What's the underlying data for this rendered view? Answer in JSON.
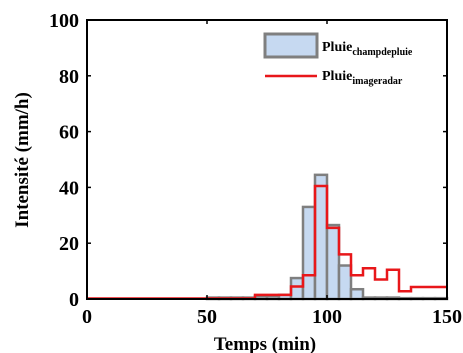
{
  "chart_data": {
    "type": "bar",
    "xlabel": "Temps (min)",
    "ylabel": "Intensité (mm/h)",
    "xlim": [
      0,
      150
    ],
    "ylim": [
      0,
      100
    ],
    "xticks": [
      "0",
      "50",
      "100",
      "150"
    ],
    "yticks": [
      "0",
      "20",
      "40",
      "60",
      "80",
      "100"
    ],
    "legend_position": "top-right",
    "series": [
      {
        "name": "Pluie",
        "name_subscript": "champdepluie",
        "style": "bars",
        "fill": "#c6d9f1",
        "edge": "#7f7f7f",
        "bin_width": 5,
        "x": [
          0,
          5,
          10,
          15,
          20,
          25,
          30,
          35,
          40,
          45,
          50,
          55,
          60,
          65,
          70,
          75,
          80,
          85,
          90,
          95,
          100,
          105,
          110,
          115,
          120,
          125,
          130,
          135,
          140,
          145
        ],
        "values": [
          0,
          0,
          0,
          0,
          0,
          0,
          0,
          0,
          0,
          0,
          0.5,
          0.5,
          0.5,
          0.5,
          1,
          1,
          1.5,
          7.5,
          33,
          44.5,
          26.5,
          12,
          3.5,
          0.5,
          0.5,
          0.5,
          0.3,
          0.3,
          0.3,
          0.3
        ]
      },
      {
        "name": "Pluie",
        "name_subscript": "imageradar",
        "style": "step",
        "color": "#e8171a",
        "bin_width": 5,
        "x": [
          0,
          5,
          10,
          15,
          20,
          25,
          30,
          35,
          40,
          45,
          50,
          55,
          60,
          65,
          70,
          75,
          80,
          85,
          90,
          95,
          100,
          105,
          110,
          115,
          120,
          125,
          130,
          135,
          140,
          145
        ],
        "values": [
          0.2,
          0.2,
          0.2,
          0.2,
          0.2,
          0.2,
          0.2,
          0.2,
          0.2,
          0.2,
          0.2,
          0.2,
          0.2,
          0.2,
          1.5,
          1.5,
          1.5,
          4.5,
          8.5,
          40.5,
          25.5,
          16,
          8.5,
          11,
          7,
          10.5,
          2.8,
          4.3,
          4.3,
          4.3
        ]
      }
    ]
  }
}
